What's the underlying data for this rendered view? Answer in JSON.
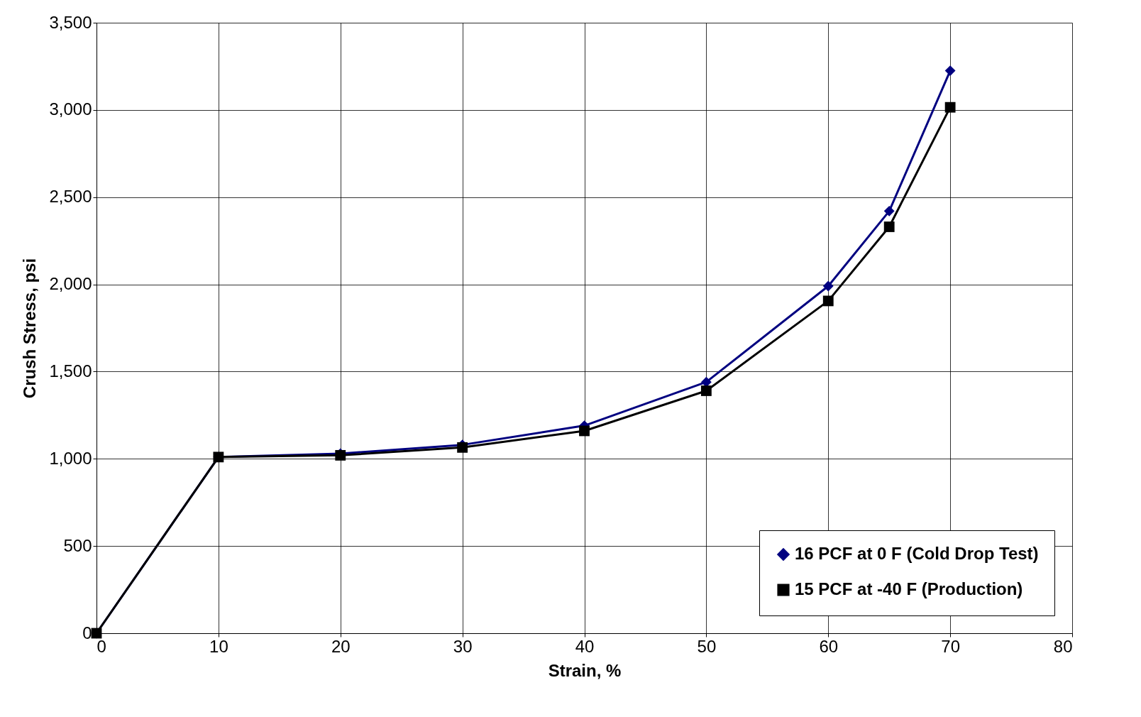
{
  "chart_data": {
    "type": "line",
    "xlabel": "Strain, %",
    "ylabel": "Crush Stress, psi",
    "x": [
      0,
      10,
      20,
      30,
      40,
      50,
      60,
      65,
      70
    ],
    "series": [
      {
        "name": "16 PCF at 0 F (Cold Drop Test)",
        "color": "#000080",
        "marker": "diamond",
        "values": [
          0,
          1010,
          1030,
          1080,
          1190,
          1440,
          1990,
          2420,
          3225
        ]
      },
      {
        "name": "15 PCF at -40 F (Production)",
        "color": "#000000",
        "marker": "square",
        "values": [
          0,
          1010,
          1020,
          1065,
          1160,
          1390,
          1905,
          2330,
          3015
        ]
      }
    ],
    "xlim": [
      0,
      80
    ],
    "xticks": [
      0,
      10,
      20,
      30,
      40,
      50,
      60,
      70,
      80
    ],
    "ylim": [
      0,
      3500
    ],
    "yticks": [
      0,
      500,
      {
        "value": 1000,
        "label": "1,000"
      },
      {
        "value": 1500,
        "label": "1,500"
      },
      {
        "value": 2000,
        "label": "2,000"
      },
      {
        "value": 2500,
        "label": "2,500"
      },
      {
        "value": 3000,
        "label": "3,000"
      },
      {
        "value": 3500,
        "label": "3,500"
      }
    ],
    "grid": true,
    "legend": "bottom right",
    "line_style": "solid"
  }
}
